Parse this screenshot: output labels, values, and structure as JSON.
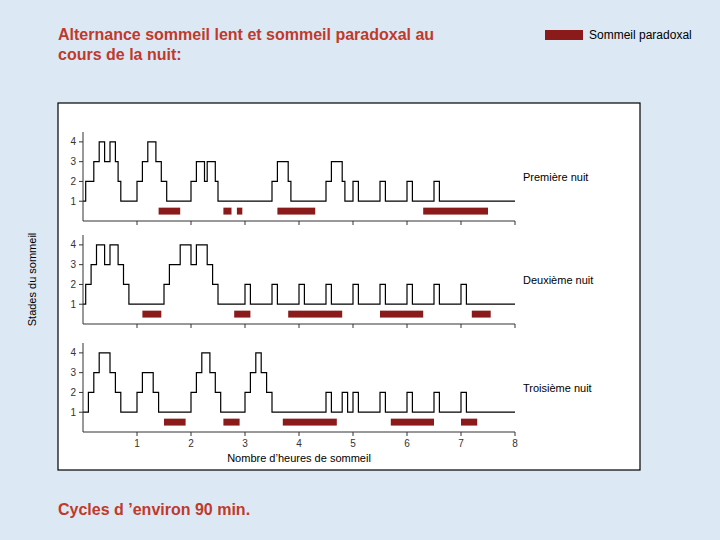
{
  "chart_data": {
    "type": "step",
    "title": "Alternance sommeil lent et sommeil paradoxal au\ncours de la nuit:",
    "subtitle": "Cycles d ’environ 90 min.",
    "xlabel": "Nombre d’heures de sommeil",
    "ylabel": "Stades du sommeil",
    "xlim": [
      0,
      8
    ],
    "ylim": [
      0,
      4.5
    ],
    "xticks": [
      1,
      2,
      3,
      4,
      5,
      6,
      7,
      8
    ],
    "yticks": [
      1,
      2,
      3,
      4
    ],
    "grid": false,
    "rem_name": "Sommeil paradoxal",
    "rem_color": "#8b1a1a",
    "series": [
      {
        "name": "Première nuit",
        "color": "#000000",
        "x": [
          0,
          0.05,
          0.05,
          0.2,
          0.2,
          0.3,
          0.3,
          0.4,
          0.4,
          0.5,
          0.5,
          0.6,
          0.6,
          0.65,
          0.65,
          0.7,
          0.7,
          1.0,
          1.0,
          1.1,
          1.1,
          1.2,
          1.2,
          1.35,
          1.35,
          1.45,
          1.45,
          1.55,
          1.55,
          2.0,
          2.0,
          2.1,
          2.1,
          2.25,
          2.25,
          2.3,
          2.3,
          2.45,
          2.45,
          2.5,
          2.5,
          3.5,
          3.5,
          3.6,
          3.6,
          3.8,
          3.8,
          3.85,
          3.85,
          4.5,
          4.5,
          4.6,
          4.6,
          4.8,
          4.8,
          4.85,
          4.85,
          5.0,
          5.0,
          5.1,
          5.1,
          5.5,
          5.5,
          5.6,
          5.6,
          6.0,
          6.0,
          6.1,
          6.1,
          6.5,
          6.5,
          6.6,
          6.6,
          7.5,
          8.0
        ],
        "values": [
          1,
          1,
          2,
          2,
          3,
          3,
          4,
          4,
          3,
          3,
          4,
          4,
          3,
          3,
          2,
          2,
          1,
          1,
          2,
          2,
          3,
          3,
          4,
          4,
          3,
          3,
          2,
          2,
          1,
          1,
          2,
          2,
          3,
          3,
          2,
          2,
          3,
          3,
          2,
          2,
          1,
          1,
          2,
          2,
          3,
          3,
          2,
          2,
          1,
          1,
          2,
          2,
          3,
          3,
          2,
          2,
          1,
          1,
          2,
          2,
          1,
          1,
          2,
          2,
          1,
          1,
          2,
          2,
          1,
          1,
          2,
          2,
          1,
          1,
          1
        ],
        "rem_start": [
          1.4,
          2.6,
          2.85,
          3.6,
          6.3
        ],
        "rem_end": [
          1.8,
          2.75,
          2.95,
          4.3,
          7.5
        ]
      },
      {
        "name": "Deuxième nuit",
        "color": "#000000",
        "x": [
          0,
          0.05,
          0.15,
          0.25,
          0.4,
          0.4,
          0.5,
          0.5,
          0.65,
          0.65,
          0.75,
          0.75,
          0.85,
          0.85,
          1.5,
          1.5,
          1.6,
          1.8,
          2.0,
          2.0,
          2.1,
          2.1,
          2.3,
          2.3,
          2.4,
          2.4,
          2.5,
          2.5,
          3.0,
          3.0,
          3.1,
          3.1,
          3.5,
          3.5,
          3.6,
          3.6,
          4.0,
          4.0,
          4.1,
          4.1,
          4.5,
          4.5,
          4.6,
          4.6,
          5.0,
          5.0,
          5.1,
          5.1,
          5.5,
          5.5,
          5.6,
          5.6,
          6.0,
          6.0,
          6.1,
          6.1,
          6.5,
          6.5,
          6.6,
          6.6,
          7.0,
          7.0,
          7.1,
          7.1,
          7.5,
          8.0
        ],
        "values": [
          1,
          2,
          3,
          4,
          4,
          3,
          3,
          4,
          4,
          3,
          3,
          2,
          2,
          1,
          1,
          2,
          3,
          4,
          4,
          3,
          3,
          4,
          4,
          3,
          3,
          2,
          2,
          1,
          1,
          2,
          2,
          1,
          1,
          2,
          2,
          1,
          1,
          2,
          2,
          1,
          1,
          2,
          2,
          1,
          1,
          2,
          2,
          1,
          1,
          2,
          2,
          1,
          1,
          2,
          2,
          1,
          1,
          2,
          2,
          1,
          1,
          2,
          2,
          1,
          1,
          1
        ],
        "rem_start": [
          1.1,
          2.8,
          3.8,
          5.5,
          7.2
        ],
        "rem_end": [
          1.45,
          3.1,
          4.8,
          6.3,
          7.55
        ]
      },
      {
        "name": "Troisième nuit",
        "color": "#000000",
        "x": [
          0,
          0.1,
          0.2,
          0.3,
          0.5,
          0.5,
          0.6,
          0.6,
          0.7,
          0.7,
          1.0,
          1.0,
          1.1,
          1.3,
          1.3,
          1.4,
          1.4,
          2.0,
          2.0,
          2.1,
          2.2,
          2.35,
          2.35,
          2.45,
          2.45,
          2.55,
          2.55,
          3.0,
          3.0,
          3.1,
          3.2,
          3.3,
          3.3,
          3.4,
          3.4,
          3.5,
          3.5,
          4.5,
          4.5,
          4.6,
          4.6,
          4.8,
          4.8,
          4.9,
          4.9,
          5.0,
          5.0,
          5.1,
          5.1,
          5.5,
          5.5,
          5.6,
          5.6,
          6.0,
          6.0,
          6.1,
          6.1,
          6.5,
          6.5,
          6.6,
          6.6,
          7.0,
          7.0,
          7.1,
          7.1,
          7.5,
          8.0
        ],
        "values": [
          1,
          2,
          3,
          4,
          4,
          3,
          3,
          2,
          2,
          1,
          1,
          2,
          3,
          3,
          2,
          2,
          1,
          1,
          2,
          3,
          4,
          4,
          3,
          3,
          2,
          2,
          1,
          1,
          2,
          3,
          4,
          4,
          3,
          3,
          2,
          2,
          1,
          1,
          2,
          2,
          1,
          1,
          2,
          2,
          1,
          1,
          2,
          2,
          1,
          1,
          2,
          2,
          1,
          1,
          2,
          2,
          1,
          1,
          2,
          2,
          1,
          1,
          2,
          2,
          1,
          1,
          1
        ],
        "rem_start": [
          1.5,
          2.6,
          3.7,
          5.7,
          7.0
        ],
        "rem_end": [
          1.9,
          2.9,
          4.7,
          6.5,
          7.3
        ]
      }
    ]
  }
}
